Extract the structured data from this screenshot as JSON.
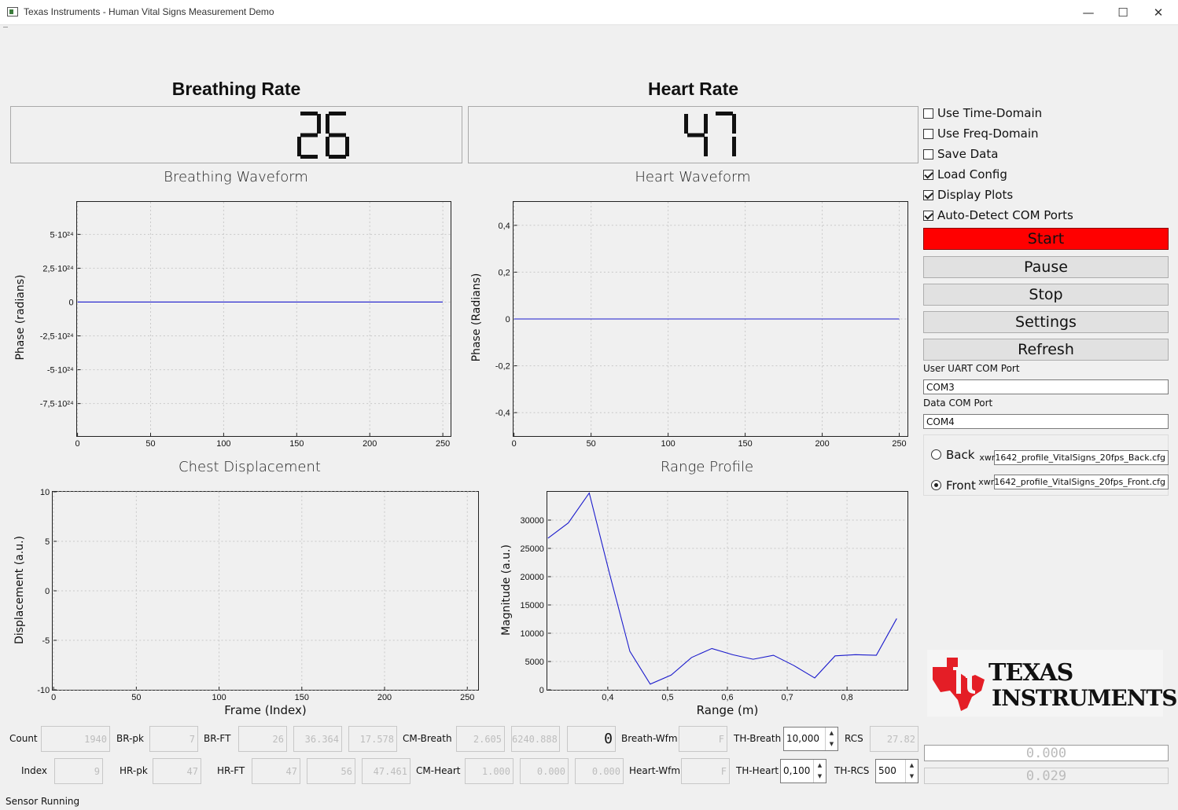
{
  "window": {
    "title": "Texas Instruments - Human Vital Signs Measurement Demo"
  },
  "breathing": {
    "title": "Breathing Rate",
    "value": "26",
    "waveform_title": "Breathing Waveform"
  },
  "heart": {
    "title": "Heart Rate",
    "value": "47",
    "waveform_title": "Heart Waveform"
  },
  "chest": {
    "title": "Chest Displacement"
  },
  "range": {
    "title": "Range Profile"
  },
  "options": [
    {
      "label": "Use Time-Domain",
      "checked": false
    },
    {
      "label": "Use Freq-Domain",
      "checked": false
    },
    {
      "label": "Save Data",
      "checked": false
    },
    {
      "label": "Load Config",
      "checked": true
    },
    {
      "label": "Display Plots",
      "checked": true
    },
    {
      "label": "Auto-Detect COM Ports",
      "checked": true
    }
  ],
  "buttons": {
    "start": "Start",
    "pause": "Pause",
    "stop": "Stop",
    "settings": "Settings",
    "refresh": "Refresh"
  },
  "colors": {
    "start_button": "#ff0000",
    "plot_line": "#1a1acc"
  },
  "ports": {
    "uart_label": "User UART COM Port",
    "uart_value": "COM3",
    "data_label": "Data COM Port",
    "data_value": "COM4"
  },
  "config": {
    "back_label": "Back",
    "back_file": "xwr1642_profile_VitalSigns_20fps_Back.cfg",
    "back_selected": false,
    "front_label": "Front",
    "front_file": "xwr1642_profile_VitalSigns_20fps_Front.cfg",
    "front_selected": true
  },
  "metrics": {
    "count_label": "Count",
    "count": "1940",
    "brpk_label": "BR-pk",
    "brpk": "7",
    "brft_label": "BR-FT",
    "brft": "26",
    "brft2": "36.364",
    "brft3": "17.578",
    "cmbreath_label": "CM-Breath",
    "cmbreath": "2.605",
    "cmbreath2": "6240.888",
    "cmbreath3": "0",
    "breathwfm_label": "Breath-Wfm",
    "breathwfm": "F",
    "thbreath_label": "TH-Breath",
    "thbreath": "10,000",
    "rcs_label": "RCS",
    "rcs": "27.82",
    "index_label": "Index",
    "index": "9",
    "hrpk_label": "HR-pk",
    "hrpk": "47",
    "hrft_label": "HR-FT",
    "hrft": "47",
    "hrft2": "56",
    "hrft3": "47.461",
    "cmheart_label": "CM-Heart",
    "cmheart": "1.000",
    "cmheart2": "0.000",
    "cmheart3": "0.000",
    "heartwfm_label": "Heart-Wfm",
    "heartwfm": "F",
    "thheart_label": "TH-Heart",
    "thheart": "0,100",
    "thrcs_label": "TH-RCS",
    "thrcs": "500",
    "lcd1": "0.000",
    "lcd2": "0.029"
  },
  "logo": {
    "line1": "Texas",
    "line2": "Instruments"
  },
  "status": "Sensor Running",
  "chart_data": [
    {
      "type": "line",
      "title": "Breathing Waveform",
      "ylabel": "Phase (radians)",
      "xlabel": "",
      "xlim": [
        0,
        255
      ],
      "ylim": [
        -9.9e+24,
        7.4e+24
      ],
      "xticks": [
        "0",
        "50",
        "100",
        "150",
        "200",
        "250"
      ],
      "yticks": [
        "5·10²⁴",
        "2,5·10²⁴",
        "0",
        "-2,5·10²⁴",
        "-5·10²⁴",
        "-7,5·10²⁴"
      ],
      "ytick_values": [
        5e+24,
        2.5e+24,
        0,
        -2.5e+24,
        -5e+24,
        -7.5e+24
      ],
      "x": [
        0,
        250
      ],
      "y": [
        0,
        0
      ],
      "grid": true
    },
    {
      "type": "line",
      "title": "Heart Waveform",
      "ylabel": "Phase (Radians)",
      "xlabel": "",
      "xlim": [
        0,
        255
      ],
      "ylim": [
        -0.5,
        0.5
      ],
      "xticks": [
        "0",
        "50",
        "100",
        "150",
        "200",
        "250"
      ],
      "yticks": [
        "0,4",
        "0,2",
        "0",
        "-0,2",
        "-0,4"
      ],
      "ytick_values": [
        0.4,
        0.2,
        0,
        -0.2,
        -0.4
      ],
      "x": [
        0,
        250
      ],
      "y": [
        0,
        0
      ],
      "grid": true
    },
    {
      "type": "line",
      "title": "Chest Displacement",
      "ylabel": "Displacement (a.u.)",
      "xlabel": "Frame (Index)",
      "xlim": [
        0,
        256
      ],
      "ylim": [
        -10,
        10
      ],
      "xticks": [
        "0",
        "50",
        "100",
        "150",
        "200",
        "250"
      ],
      "yticks": [
        "10",
        "5",
        "0",
        "-5",
        "-10"
      ],
      "ytick_values": [
        10,
        5,
        0,
        -5,
        -10
      ],
      "x": [],
      "y": [],
      "grid": true
    },
    {
      "type": "line",
      "title": "Range Profile",
      "ylabel": "Magnitude (a.u.)",
      "xlabel": "Range (m)",
      "xlim": [
        0.3,
        0.9
      ],
      "ylim": [
        0,
        35000
      ],
      "xticks": [
        "0,4",
        "0,5",
        "0,6",
        "0,7",
        "0,8"
      ],
      "xtick_values": [
        0.4,
        0.5,
        0.6,
        0.7,
        0.8
      ],
      "yticks": [
        "30000",
        "25000",
        "20000",
        "15000",
        "10000",
        "5000",
        "0"
      ],
      "ytick_values": [
        30000,
        25000,
        20000,
        15000,
        10000,
        5000,
        0
      ],
      "x": [
        0.3,
        0.334,
        0.369,
        0.403,
        0.437,
        0.471,
        0.506,
        0.54,
        0.574,
        0.609,
        0.643,
        0.677,
        0.711,
        0.746,
        0.78,
        0.814,
        0.849,
        0.883
      ],
      "y": [
        26800,
        29500,
        34800,
        20500,
        6800,
        1000,
        2600,
        5700,
        7300,
        6200,
        5400,
        6100,
        4300,
        2100,
        6000,
        6200,
        6100,
        12600
      ],
      "grid": true
    }
  ]
}
